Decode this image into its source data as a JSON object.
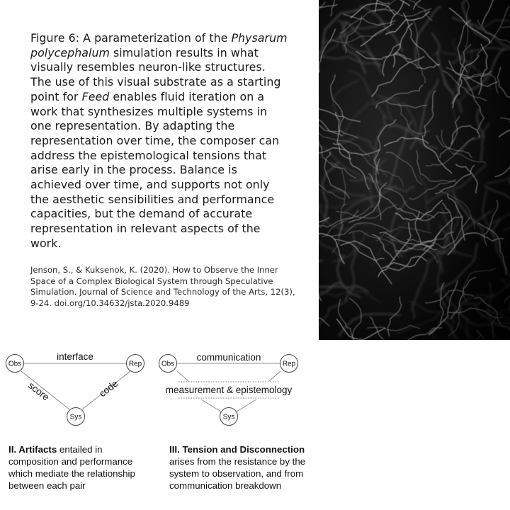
{
  "caption": {
    "prefix": "Figure 6: A parameterization of the ",
    "species": "Physarum polycephalum",
    "middle1": " simulation results in what visually resembles neuron-like structures. The use of this visual substrate as a starting point for ",
    "work": "Feed",
    "rest": " enables fluid iteration on a work that synthesizes multiple systems in one representation. By adapting the representation over time, the composer can address the epistemological tensions that arise early in the process. Balance is achieved over time, and supports not only the aesthetic sensibilities and performance capacities, but the demand of accurate representation in relevant aspects of the work."
  },
  "citation": "Jenson, S., & Kuksenok, K. (2020). How to Observe the Inner Space of a Complex Biological System through Speculative Simulation. Journal of Science and Technology of the Arts, 12(3), 9-24. doi.org/10.34632/jsta.2020.9489",
  "diagram1": {
    "nodes": {
      "obs": "Obs",
      "rep": "Rep",
      "sys": "Sys"
    },
    "edges": {
      "top": "interface",
      "left": "score",
      "right": "code"
    },
    "heading": "II. Artifacts",
    "text": " entailed in composition and performance which mediate the relationship between each pair"
  },
  "diagram2": {
    "nodes": {
      "obs": "Obs",
      "rep": "Rep",
      "sys": "Sys"
    },
    "top_label": "communication",
    "middle_label": "measurement & epistemology",
    "heading": "III. Tension and Disconnection",
    "text": "arises from the resistance by the system to observation, and from communication breakdown"
  }
}
